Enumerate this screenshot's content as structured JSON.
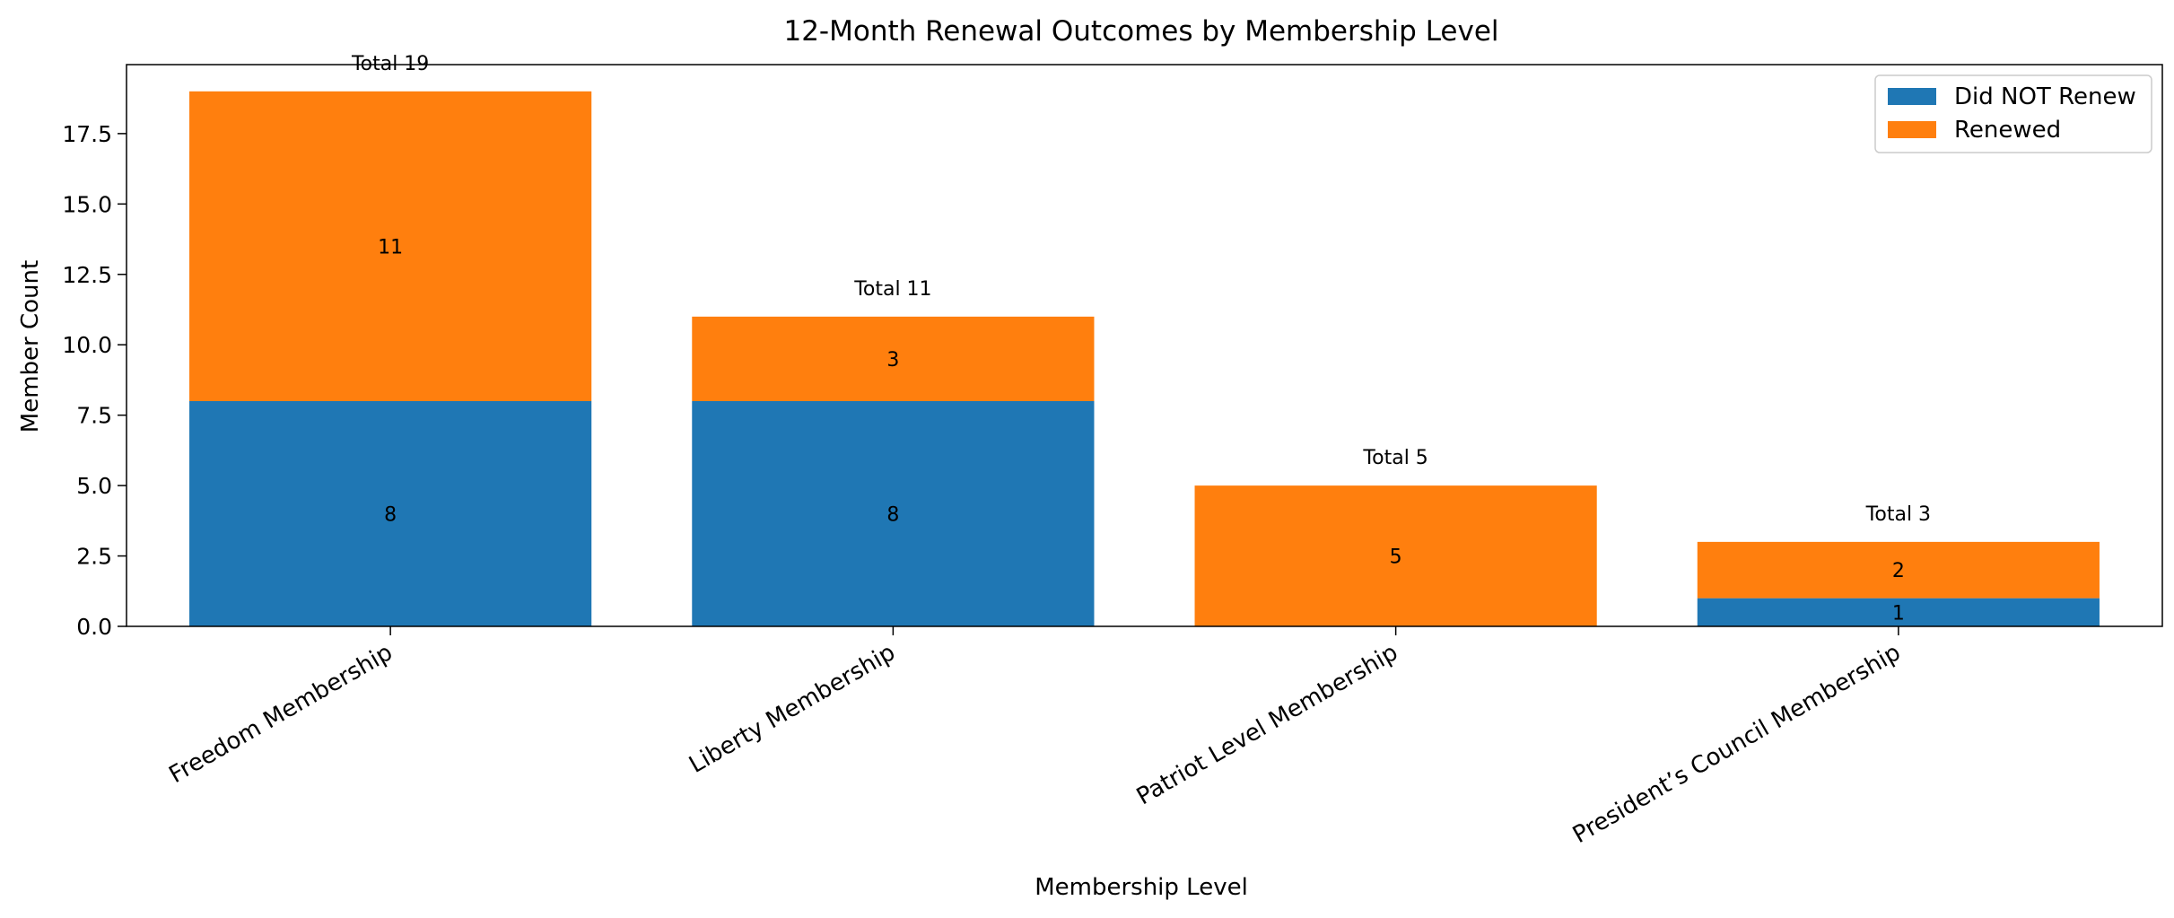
{
  "chart_data": {
    "type": "bar",
    "stacked": true,
    "title": "12-Month Renewal Outcomes by Membership Level",
    "xlabel": "Membership Level",
    "ylabel": "Member Count",
    "ylim": [
      0,
      19.95
    ],
    "yticks": [
      "0.0",
      "2.5",
      "5.0",
      "7.5",
      "10.0",
      "12.5",
      "15.0",
      "17.5"
    ],
    "categories": [
      "Freedom Membership",
      "Liberty Membership",
      "Patriot Level Membership",
      "President’s Council Membership"
    ],
    "series": [
      {
        "name": "Did NOT Renew",
        "values": [
          8,
          8,
          0,
          1
        ],
        "color": "#1f77b4"
      },
      {
        "name": "Renewed",
        "values": [
          11,
          3,
          5,
          2
        ],
        "color": "#ff7f0e"
      }
    ],
    "segment_labels": [
      [
        "8",
        "8",
        "",
        "1"
      ],
      [
        "11",
        "3",
        "5",
        "2"
      ]
    ],
    "totals": [
      19,
      11,
      5,
      3
    ],
    "total_labels": [
      "Total 19",
      "Total 11",
      "Total 5",
      "Total 3"
    ],
    "legend": {
      "position": "top-right"
    },
    "grid": false
  }
}
